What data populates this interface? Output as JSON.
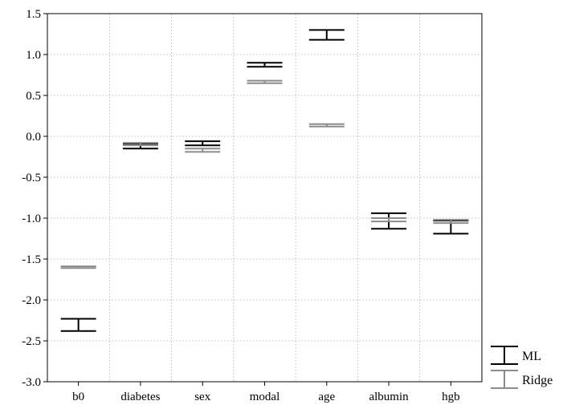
{
  "chart_data": {
    "type": "errorbar",
    "categories": [
      "b0",
      "diabetes",
      "sex",
      "modal",
      "age",
      "albumin",
      "hgb"
    ],
    "ylim": [
      -3.0,
      1.5
    ],
    "yticks": [
      "1.5",
      "1.0",
      "0.5",
      "0.0",
      "-0.5",
      "-1.0",
      "-1.5",
      "-2.0",
      "-2.5",
      "-3.0"
    ],
    "grid": true,
    "legend_position": "bottom-right",
    "series": [
      {
        "name": "ML",
        "color": "#000000",
        "lower": [
          -2.38,
          -0.15,
          -0.11,
          0.85,
          1.18,
          -1.13,
          -1.19
        ],
        "upper": [
          -2.23,
          -0.09,
          -0.06,
          0.9,
          1.3,
          -0.94,
          -1.03
        ]
      },
      {
        "name": "Ridge",
        "color": "#8c8c8c",
        "lower": [
          -1.61,
          -0.11,
          -0.19,
          0.65,
          0.12,
          -1.04,
          -1.06
        ],
        "upper": [
          -1.59,
          -0.08,
          -0.15,
          0.68,
          0.15,
          -1.0,
          -1.02
        ]
      }
    ]
  }
}
